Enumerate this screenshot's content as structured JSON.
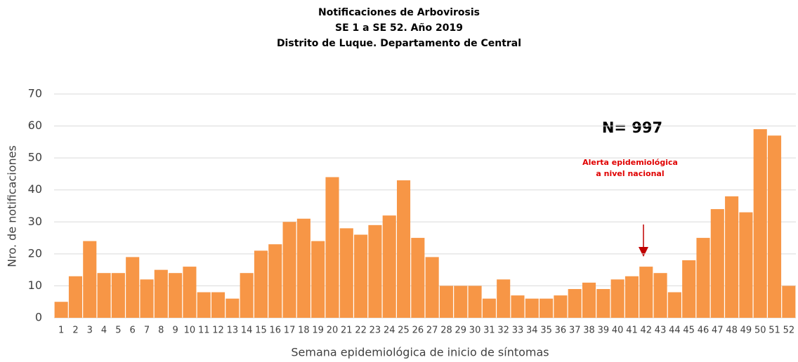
{
  "chart_data": {
    "type": "bar",
    "title": [
      "Notificaciones de Arbovirosis",
      "SE 1 a SE 52. Año 2019",
      "Distrito de Luque. Departamento de Central"
    ],
    "annotations": [
      "N= 997",
      "Alerta epidemiológica",
      "a nivel nacional"
    ],
    "x_label": "Semana epidemiológica de inicio de síntomas",
    "y_label": "Nro. de notificaciones",
    "categories": [
      "1",
      "2",
      "3",
      "4",
      "5",
      "6",
      "7",
      "8",
      "9",
      "10",
      "11",
      "12",
      "13",
      "14",
      "15",
      "16",
      "17",
      "18",
      "19",
      "20",
      "21",
      "22",
      "23",
      "24",
      "25",
      "26",
      "27",
      "28",
      "29",
      "30",
      "31",
      "32",
      "33",
      "34",
      "35",
      "36",
      "37",
      "38",
      "39",
      "40",
      "41",
      "42",
      "43",
      "44",
      "45",
      "46",
      "47",
      "48",
      "49",
      "50",
      "51",
      "52"
    ],
    "values": [
      5,
      13,
      24,
      14,
      14,
      19,
      12,
      15,
      14,
      16,
      8,
      8,
      6,
      14,
      21,
      23,
      30,
      31,
      24,
      44,
      28,
      26,
      29,
      32,
      43,
      25,
      19,
      10,
      10,
      10,
      6,
      12,
      7,
      6,
      6,
      7,
      9,
      11,
      9,
      12,
      13,
      16,
      14,
      8,
      18,
      25,
      34,
      38,
      33,
      59,
      57,
      10
    ],
    "color": "#f79646",
    "ylim": [
      0,
      70
    ],
    "yticks": [
      0,
      10,
      20,
      30,
      40,
      50,
      60,
      70
    ],
    "grid": true
  }
}
